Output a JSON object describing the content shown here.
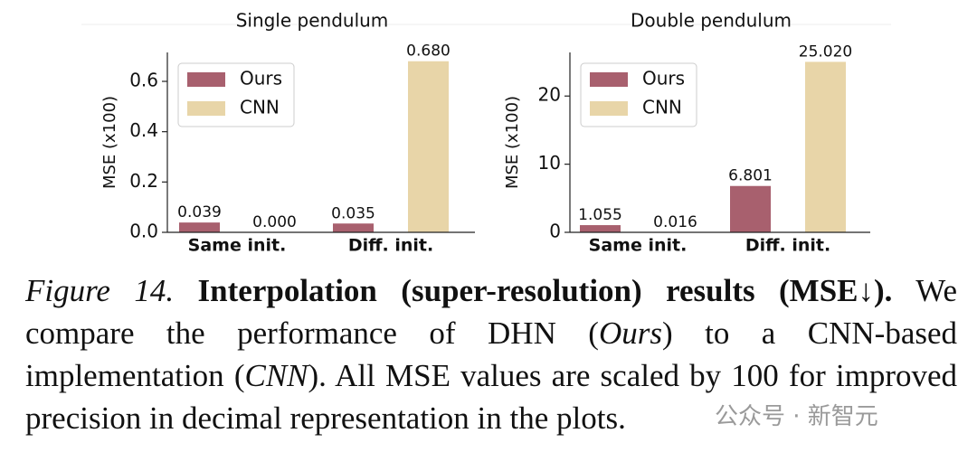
{
  "chart_data": [
    {
      "type": "bar",
      "title": "Single pendulum",
      "y_label": "MSE (x100)",
      "categories": [
        "Same init.",
        "Diff. init."
      ],
      "series": [
        {
          "name": "Ours",
          "color": "#a8606e",
          "values": [
            0.039,
            0.035
          ],
          "value_labels": [
            "0.039",
            "0.035"
          ]
        },
        {
          "name": "CNN",
          "color": "#e8d5a8",
          "values": [
            0,
            0.68
          ],
          "value_labels": [
            "0.000",
            "0.680"
          ]
        }
      ],
      "ylim": [
        0,
        0.715
      ],
      "yticks": [
        {
          "value": 0,
          "label": "0.0"
        },
        0.2,
        0.4,
        0.6
      ],
      "legend": "upper left"
    },
    {
      "type": "bar",
      "title": "Double pendulum",
      "y_label": "MSE (x100)",
      "categories": [
        "Same init.",
        "Diff. init."
      ],
      "series": [
        {
          "name": "Ours",
          "color": "#a8606e",
          "values": [
            1.055,
            6.801
          ],
          "value_labels": [
            "1.055",
            "6.801"
          ]
        },
        {
          "name": "CNN",
          "color": "#e8d5a8",
          "values": [
            0.016,
            25.02
          ],
          "value_labels": [
            "0.016",
            "25.020"
          ]
        }
      ],
      "ylim": [
        0,
        26.4
      ],
      "yticks": [
        0,
        10,
        20
      ],
      "legend": "upper left"
    }
  ],
  "caption": {
    "label": "Figure 14.",
    "title": "Interpolation (super-resolution) results (MSE↓).",
    "text": [
      "We compare the performance of DHN (",
      "Ours",
      ") to a CNN-based implementation (",
      "CNN",
      "). All MSE values are scaled by 100 for improved precision in decimal representation in the plots."
    ]
  },
  "watermark": "公众号 · 新智元"
}
